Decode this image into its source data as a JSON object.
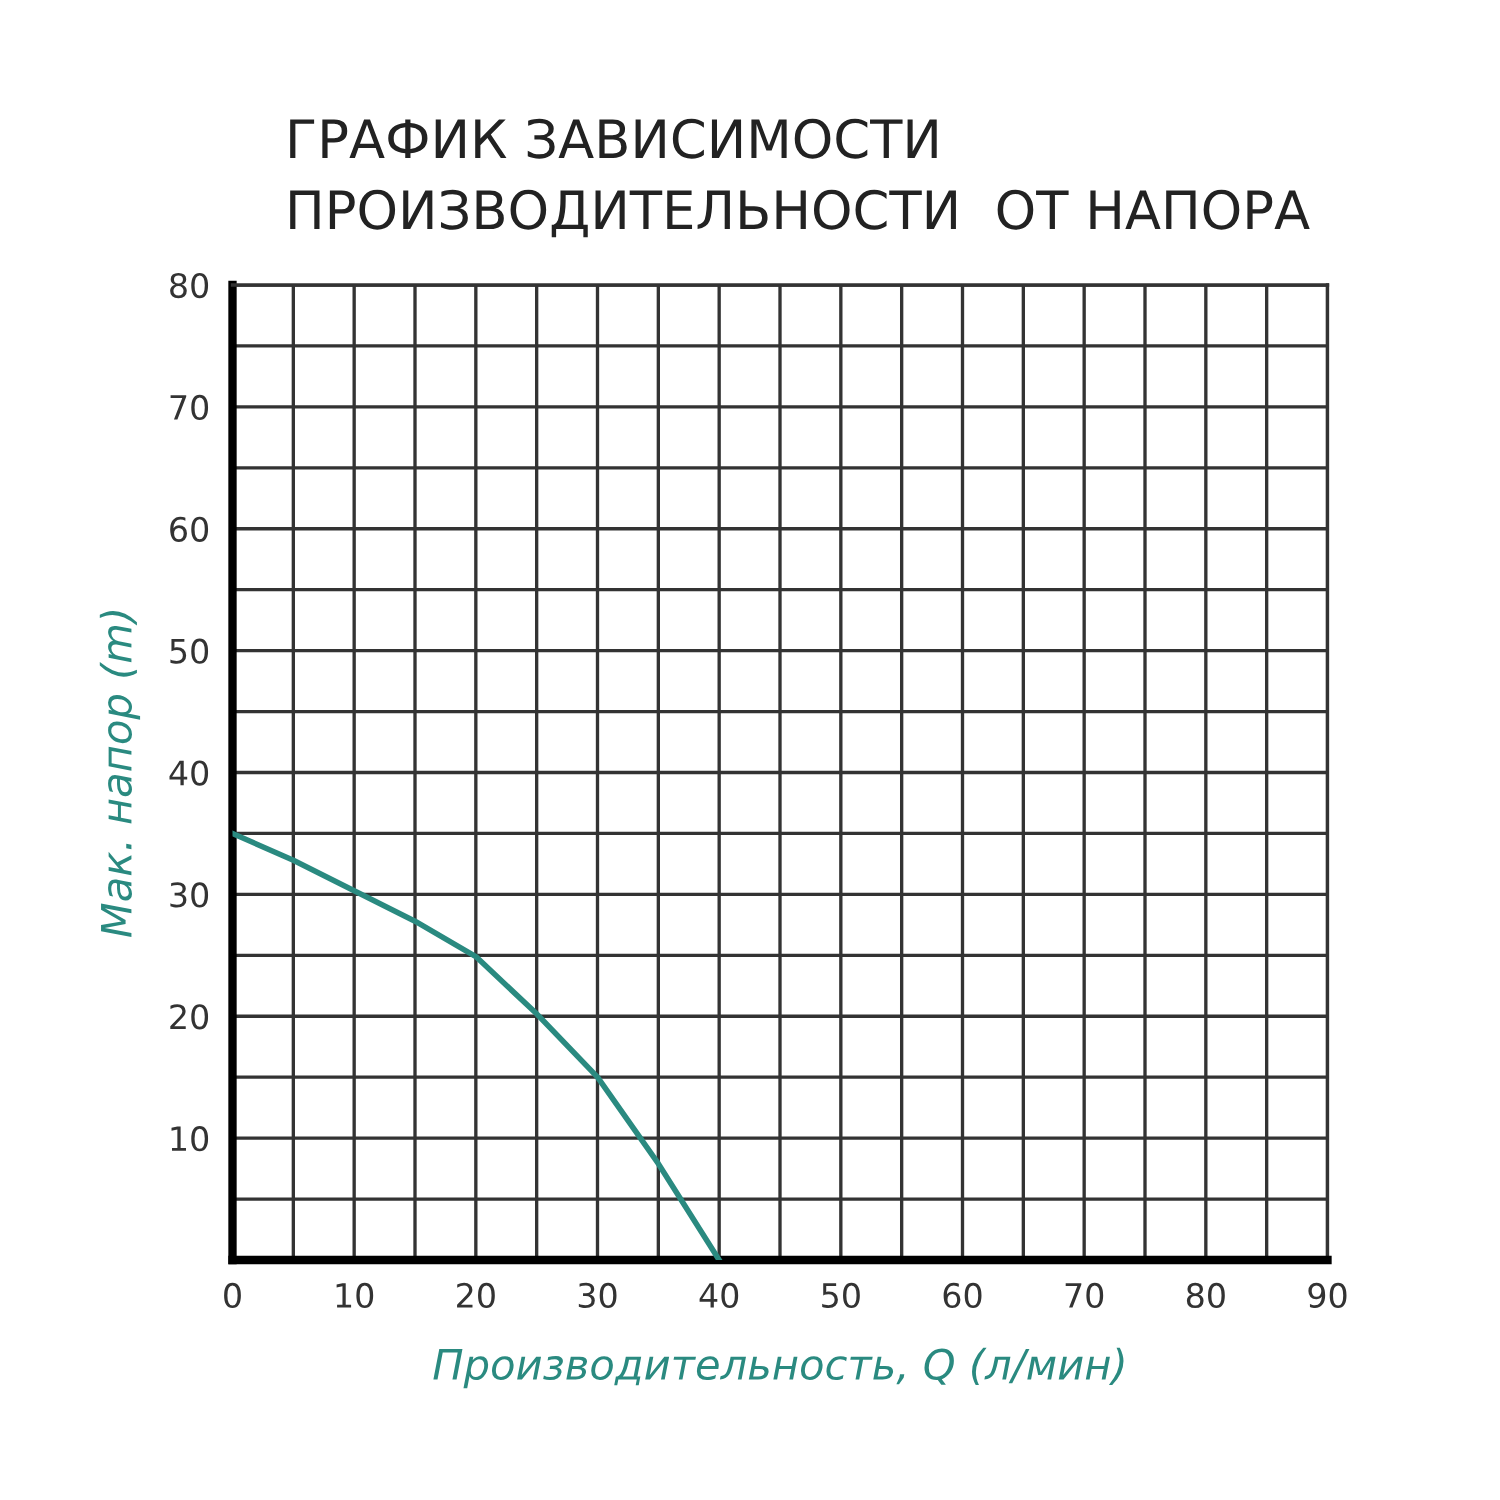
{
  "chart_data": {
    "type": "line",
    "title": "ГРАФИК ЗАВИСИМОСТИ\nПРОИЗВОДИТЕЛЬНОСТИ  ОТ НАПОРА",
    "xlabel": "Производительность, Q (л/мин)",
    "ylabel": "Мак. напор (m)",
    "x": [
      0,
      5,
      10,
      15,
      20,
      25,
      30,
      35,
      40
    ],
    "series": [
      {
        "color": "#2a8a80",
        "values": [
          35,
          32.8,
          30.3,
          27.8,
          24.9,
          20.2,
          15,
          7.9,
          0
        ]
      }
    ],
    "xlim": [
      0,
      90
    ],
    "ylim": [
      0,
      80
    ],
    "xticks": [
      0,
      {
        "value": 5,
        "label": null
      },
      10,
      {
        "value": 15,
        "label": null
      },
      20,
      {
        "value": 25,
        "label": null
      },
      30,
      {
        "value": 35,
        "label": null
      },
      40,
      {
        "value": 45,
        "label": null
      },
      50,
      {
        "value": 55,
        "label": null
      },
      60,
      {
        "value": 65,
        "label": null
      },
      70,
      {
        "value": 75,
        "label": null
      },
      80,
      {
        "value": 85,
        "label": null
      },
      90
    ],
    "yticks": [
      {
        "value": 0,
        "label": null
      },
      {
        "value": 5,
        "label": null
      },
      10,
      {
        "value": 15,
        "label": null
      },
      20,
      {
        "value": 25,
        "label": null
      },
      30,
      {
        "value": 35,
        "label": null
      },
      40,
      {
        "value": 45,
        "label": null
      },
      50,
      {
        "value": 55,
        "label": null
      },
      60,
      {
        "value": 65,
        "label": null
      },
      70,
      {
        "value": 75,
        "label": null
      },
      80
    ],
    "grid": true,
    "marker": "none",
    "line_style": "solid"
  }
}
